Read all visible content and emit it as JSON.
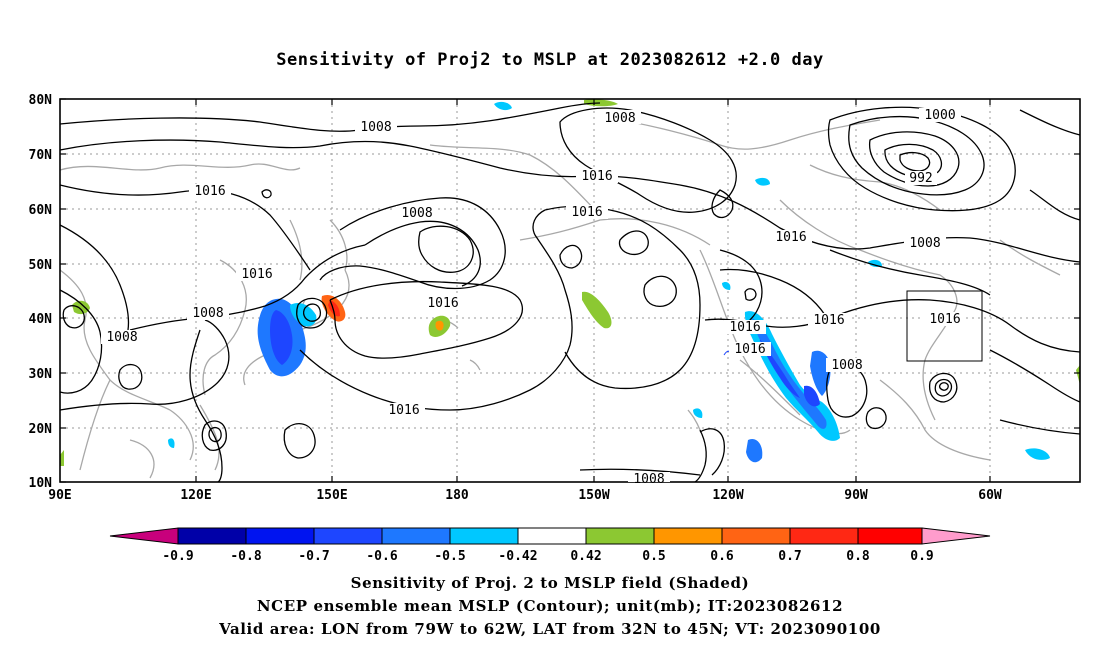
{
  "title": "Sensitivity of Proj2 to MSLP at 2023082612 +2.0 day",
  "lat_labels": [
    "80N",
    "70N",
    "60N",
    "50N",
    "40N",
    "30N",
    "20N",
    "10N"
  ],
  "lon_labels": [
    "90E",
    "120E",
    "150E",
    "180",
    "150W",
    "120W",
    "90W",
    "60W"
  ],
  "contour_labels": [
    "1008",
    "1008",
    "1016",
    "1016",
    "1000",
    "992",
    "1016",
    "1008",
    "1016",
    "1016",
    "1016",
    "1008",
    "1008",
    "1016",
    "1016",
    "1008",
    "1016",
    "1016",
    "1016",
    "1008",
    "1008"
  ],
  "colorbar": {
    "ticks": [
      "-0.9",
      "-0.8",
      "-0.7",
      "-0.6",
      "-0.5",
      "-0.42",
      "0.42",
      "0.5",
      "0.6",
      "0.7",
      "0.8",
      "0.9"
    ],
    "colors": [
      "#c8007c",
      "#0000a8",
      "#0014f0",
      "#1e46ff",
      "#1e78ff",
      "#00c8ff",
      "#ffffff",
      "#8cc832",
      "#ff9600",
      "#ff6414",
      "#ff2814",
      "#ff0000",
      "#ff9ccc"
    ]
  },
  "captions": [
    "Sensitivity of Proj. 2 to MSLP field (Shaded)",
    "NCEP ensemble mean MSLP (Contour); unit(mb); IT:2023082612",
    "Valid area: LON from 79W to 62W, LAT from 32N to 45N; VT: 2023090100"
  ]
}
